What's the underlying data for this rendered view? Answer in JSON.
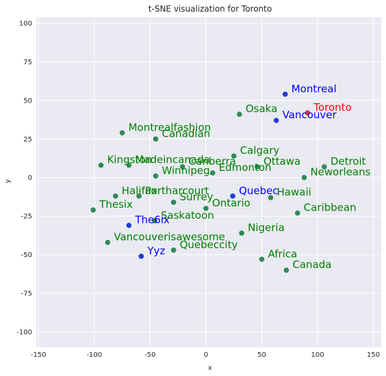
{
  "chart_data": {
    "type": "scatter",
    "title": "t-SNE visualization for Toronto",
    "xlabel": "x",
    "ylabel": "y",
    "xlim": [
      -152,
      157
    ],
    "ylim": [
      -110,
      104
    ],
    "xticks": [
      -150,
      -100,
      -50,
      0,
      50,
      100,
      150
    ],
    "yticks": [
      100,
      75,
      50,
      25,
      0,
      -25,
      -50,
      -75,
      -100
    ],
    "grid": true,
    "colors": {
      "background": "#eaeaf2",
      "grid": "#ffffff",
      "green_point": "#2e8b57",
      "green_text": "#008000",
      "blue_point": "#1f3fd6",
      "blue_text": "#0000ff",
      "red_point": "#e0344a",
      "red_text": "#ff0000"
    },
    "points": [
      {
        "label": "Montreal",
        "x": 71,
        "y": 54,
        "color": "blue"
      },
      {
        "label": "Toronto",
        "x": 91,
        "y": 42,
        "color": "red"
      },
      {
        "label": "Vancouver",
        "x": 63,
        "y": 37,
        "color": "blue"
      },
      {
        "label": "Osaka",
        "x": 30,
        "y": 41,
        "color": "green"
      },
      {
        "label": "Montrealfashion",
        "x": -75,
        "y": 29,
        "color": "green"
      },
      {
        "label": "Canadian",
        "x": -45,
        "y": 25,
        "color": "green"
      },
      {
        "label": "Calgary",
        "x": 25,
        "y": 14,
        "color": "green"
      },
      {
        "label": "Detroit",
        "x": 106,
        "y": 7,
        "color": "green"
      },
      {
        "label": "Kingston",
        "x": -94,
        "y": 8,
        "color": "green"
      },
      {
        "label": "Madeincanada",
        "x": -69,
        "y": 8,
        "color": "green"
      },
      {
        "label": "Canberra",
        "x": -21,
        "y": 7,
        "color": "green"
      },
      {
        "label": "Ottawa",
        "x": 46,
        "y": 7,
        "color": "green"
      },
      {
        "label": "Edmonton",
        "x": 6,
        "y": 3,
        "color": "green"
      },
      {
        "label": "Winnipeg",
        "x": -45,
        "y": 1,
        "color": "green"
      },
      {
        "label": "Neworleans",
        "x": 88,
        "y": 0,
        "color": "green"
      },
      {
        "label": "Halifax",
        "x": -81,
        "y": -12,
        "color": "green"
      },
      {
        "label": "Portharcourt",
        "x": -60,
        "y": -12,
        "color": "green"
      },
      {
        "label": "Quebec",
        "x": 24,
        "y": -12,
        "color": "blue"
      },
      {
        "label": "Hawaii",
        "x": 58,
        "y": -13,
        "color": "green"
      },
      {
        "label": "Surrey",
        "x": -29,
        "y": -16,
        "color": "green"
      },
      {
        "label": "Ontario",
        "x": 0,
        "y": -20,
        "color": "green"
      },
      {
        "label": "Thesix",
        "x": -101,
        "y": -21,
        "color": "green"
      },
      {
        "label": "Caribbean",
        "x": 82,
        "y": -23,
        "color": "green"
      },
      {
        "label": "Saskatoon",
        "x": -46,
        "y": -28,
        "color": "green"
      },
      {
        "label": "The6ix",
        "x": -69,
        "y": -31,
        "color": "blue"
      },
      {
        "label": "Nigeria",
        "x": 32,
        "y": -36,
        "color": "green"
      },
      {
        "label": "Vancouverisawesome",
        "x": -88,
        "y": -42,
        "color": "green"
      },
      {
        "label": "Quebeccity",
        "x": -29,
        "y": -47,
        "color": "green"
      },
      {
        "label": "Yyz",
        "x": -58,
        "y": -51,
        "color": "blue"
      },
      {
        "label": "Africa",
        "x": 50,
        "y": -53,
        "color": "green"
      },
      {
        "label": "Canada",
        "x": 72,
        "y": -60,
        "color": "green"
      }
    ]
  }
}
